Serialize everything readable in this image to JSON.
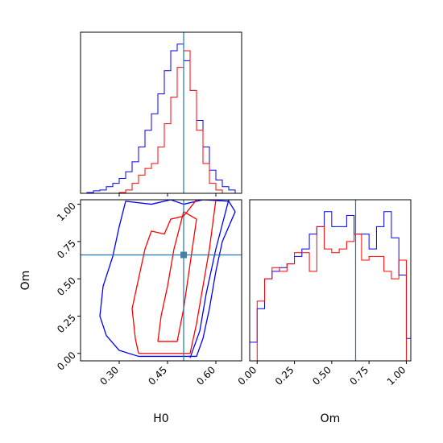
{
  "chart_data": [
    {
      "panel": "H0 marginal",
      "type": "histogram",
      "xlim": [
        0.18,
        0.68
      ],
      "truth": 0.5,
      "series": [
        {
          "color": "#0000ff",
          "bin_edges": [
            0.2,
            0.22,
            0.24,
            0.26,
            0.28,
            0.3,
            0.32,
            0.34,
            0.36,
            0.38,
            0.4,
            0.42,
            0.44,
            0.46,
            0.48,
            0.5,
            0.52,
            0.54,
            0.56,
            0.58,
            0.6,
            0.62,
            0.64,
            0.66
          ],
          "counts": [
            0.5,
            1.5,
            2,
            4,
            6,
            9,
            13,
            19,
            28,
            38,
            48,
            60,
            74,
            86,
            90,
            80,
            62,
            44,
            28,
            14,
            8,
            4,
            2
          ]
        },
        {
          "color": "#ff0000",
          "bin_edges": [
            0.3,
            0.32,
            0.34,
            0.36,
            0.38,
            0.4,
            0.42,
            0.44,
            0.46,
            0.48,
            0.5,
            0.52,
            0.54,
            0.56,
            0.58,
            0.6,
            0.62
          ],
          "counts": [
            0.5,
            2,
            6,
            11,
            15,
            18,
            28,
            42,
            58,
            76,
            86,
            62,
            38,
            18,
            6,
            2
          ]
        }
      ]
    },
    {
      "panel": "Om marginal",
      "type": "histogram",
      "xlim": [
        -0.05,
        1.03
      ],
      "truth": 0.66,
      "xlabel": "Om",
      "xticks": [
        "0.00",
        "0.25",
        "0.50",
        "0.75",
        "1.00"
      ],
      "series": [
        {
          "color": "#0000ff",
          "bin_edges": [
            -0.05,
            0.0,
            0.05,
            0.1,
            0.15,
            0.2,
            0.25,
            0.3,
            0.35,
            0.4,
            0.45,
            0.5,
            0.55,
            0.6,
            0.65,
            0.7,
            0.75,
            0.8,
            0.85,
            0.9,
            0.95,
            1.0,
            1.03
          ],
          "counts": [
            5,
            14,
            22,
            24,
            25,
            26,
            28,
            30,
            34,
            36,
            40,
            36,
            36,
            39,
            34,
            34,
            30,
            36,
            40,
            33,
            23,
            6
          ]
        },
        {
          "color": "#ff0000",
          "bin_edges": [
            0.0,
            0.05,
            0.1,
            0.15,
            0.2,
            0.25,
            0.3,
            0.35,
            0.4,
            0.45,
            0.5,
            0.55,
            0.6,
            0.65,
            0.7,
            0.75,
            0.8,
            0.85,
            0.9,
            0.95,
            1.0
          ],
          "counts": [
            16,
            22,
            25,
            24,
            26,
            29,
            29,
            24,
            36,
            30,
            29,
            30,
            32,
            34,
            27,
            28,
            28,
            24,
            22,
            27
          ]
        }
      ]
    },
    {
      "panel": "H0-Om joint",
      "type": "contour",
      "xlim": [
        0.18,
        0.68
      ],
      "ylim": [
        -0.05,
        1.03
      ],
      "truth": [
        0.5,
        0.66
      ],
      "xlabel": "H0",
      "ylabel": "Om",
      "xticks": [
        "0.30",
        "0.45",
        "0.60"
      ],
      "yticks": [
        "0.00",
        "0.25",
        "0.50",
        "0.75",
        "1.00"
      ],
      "series": [
        {
          "color": "#0000ff",
          "contours": [
            [
              [
                0.36,
                -0.02
              ],
              [
                0.54,
                -0.02
              ],
              [
                0.56,
                0.1
              ],
              [
                0.58,
                0.3
              ],
              [
                0.6,
                0.55
              ],
              [
                0.62,
                0.75
              ],
              [
                0.66,
                0.95
              ],
              [
                0.64,
                1.02
              ],
              [
                0.56,
                1.03
              ],
              [
                0.5,
                1.0
              ],
              [
                0.46,
                1.03
              ],
              [
                0.4,
                1.0
              ],
              [
                0.32,
                1.02
              ],
              [
                0.3,
                0.85
              ],
              [
                0.28,
                0.65
              ],
              [
                0.25,
                0.45
              ],
              [
                0.24,
                0.25
              ],
              [
                0.26,
                0.12
              ],
              [
                0.3,
                0.02
              ],
              [
                0.36,
                -0.02
              ]
            ],
            [
              [
                0.52,
                -0.03
              ],
              [
                0.55,
                0.15
              ],
              [
                0.57,
                0.4
              ],
              [
                0.6,
                0.7
              ],
              [
                0.64,
                1.03
              ]
            ]
          ]
        },
        {
          "color": "#ff0000",
          "contours": [
            [
              [
                0.36,
                0.0
              ],
              [
                0.52,
                0.0
              ],
              [
                0.54,
                0.2
              ],
              [
                0.56,
                0.45
              ],
              [
                0.58,
                0.7
              ],
              [
                0.6,
                1.03
              ],
              [
                0.54,
                1.03
              ],
              [
                0.5,
                0.92
              ],
              [
                0.46,
                0.9
              ],
              [
                0.44,
                0.8
              ],
              [
                0.4,
                0.82
              ],
              [
                0.38,
                0.7
              ],
              [
                0.36,
                0.5
              ],
              [
                0.34,
                0.3
              ],
              [
                0.35,
                0.1
              ],
              [
                0.36,
                0.0
              ]
            ],
            [
              [
                0.42,
                0.08
              ],
              [
                0.48,
                0.08
              ],
              [
                0.5,
                0.3
              ],
              [
                0.52,
                0.6
              ],
              [
                0.54,
                0.9
              ],
              [
                0.5,
                0.95
              ],
              [
                0.47,
                0.7
              ],
              [
                0.45,
                0.45
              ],
              [
                0.43,
                0.25
              ],
              [
                0.42,
                0.08
              ]
            ]
          ]
        }
      ]
    }
  ]
}
